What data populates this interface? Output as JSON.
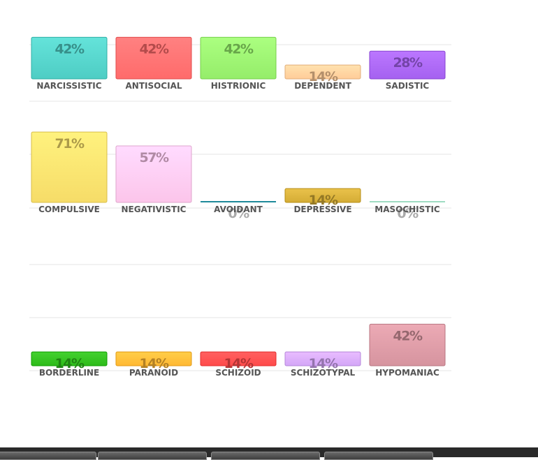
{
  "chart_data": [
    {
      "type": "bar",
      "categories": [
        "NARCISSISTIC",
        "ANTISOCIAL",
        "HISTRIONIC",
        "DEPENDENT",
        "SADISTIC"
      ],
      "values": [
        42,
        42,
        42,
        14,
        28
      ],
      "labels": [
        "42%",
        "42%",
        "42%",
        "14%",
        "28%"
      ],
      "colors": [
        "#4ecdc4",
        "#ff6b6b",
        "#95ed6a",
        "#ffcc99",
        "#a561f0"
      ],
      "label_colors": [
        "#37908a",
        "#b34b4b",
        "#68a64a",
        "#b38f6b",
        "#7444a8"
      ],
      "ylim": [
        0,
        100
      ]
    },
    {
      "type": "bar",
      "categories": [
        "COMPULSIVE",
        "NEGATIVISTIC",
        "AVOIDANT",
        "DEPRESSIVE",
        "MASOCHISTIC"
      ],
      "values": [
        71,
        57,
        0,
        14,
        0
      ],
      "labels": [
        "71%",
        "57%",
        "0%",
        "14%",
        "0%"
      ],
      "colors": [
        "#f6dc68",
        "#fcc5ea",
        "#1f8a9a",
        "#d4ac35",
        "#9fdcc2"
      ],
      "label_colors": [
        "#ac9a49",
        "#b08aa4",
        "#aaaaaa",
        "#947825",
        "#aaaaaa"
      ],
      "ylim": [
        0,
        100
      ]
    },
    {
      "type": "bar",
      "categories": [
        "BORDERLINE",
        "PARANOID",
        "SCHIZOID",
        "SCHIZOTYPAL",
        "HYPOMANIAC"
      ],
      "values": [
        14,
        14,
        14,
        14,
        42
      ],
      "labels": [
        "14%",
        "14%",
        "14%",
        "14%",
        "42%"
      ],
      "colors": [
        "#2dbb19",
        "#ffb833",
        "#ff4a4a",
        "#d3a6f7",
        "#d6949f"
      ],
      "label_colors": [
        "#1f8312",
        "#b38124",
        "#b33434",
        "#9474ad",
        "#96686f"
      ],
      "ylim": [
        0,
        100
      ]
    }
  ],
  "taskbar": {
    "buttons": 4
  }
}
